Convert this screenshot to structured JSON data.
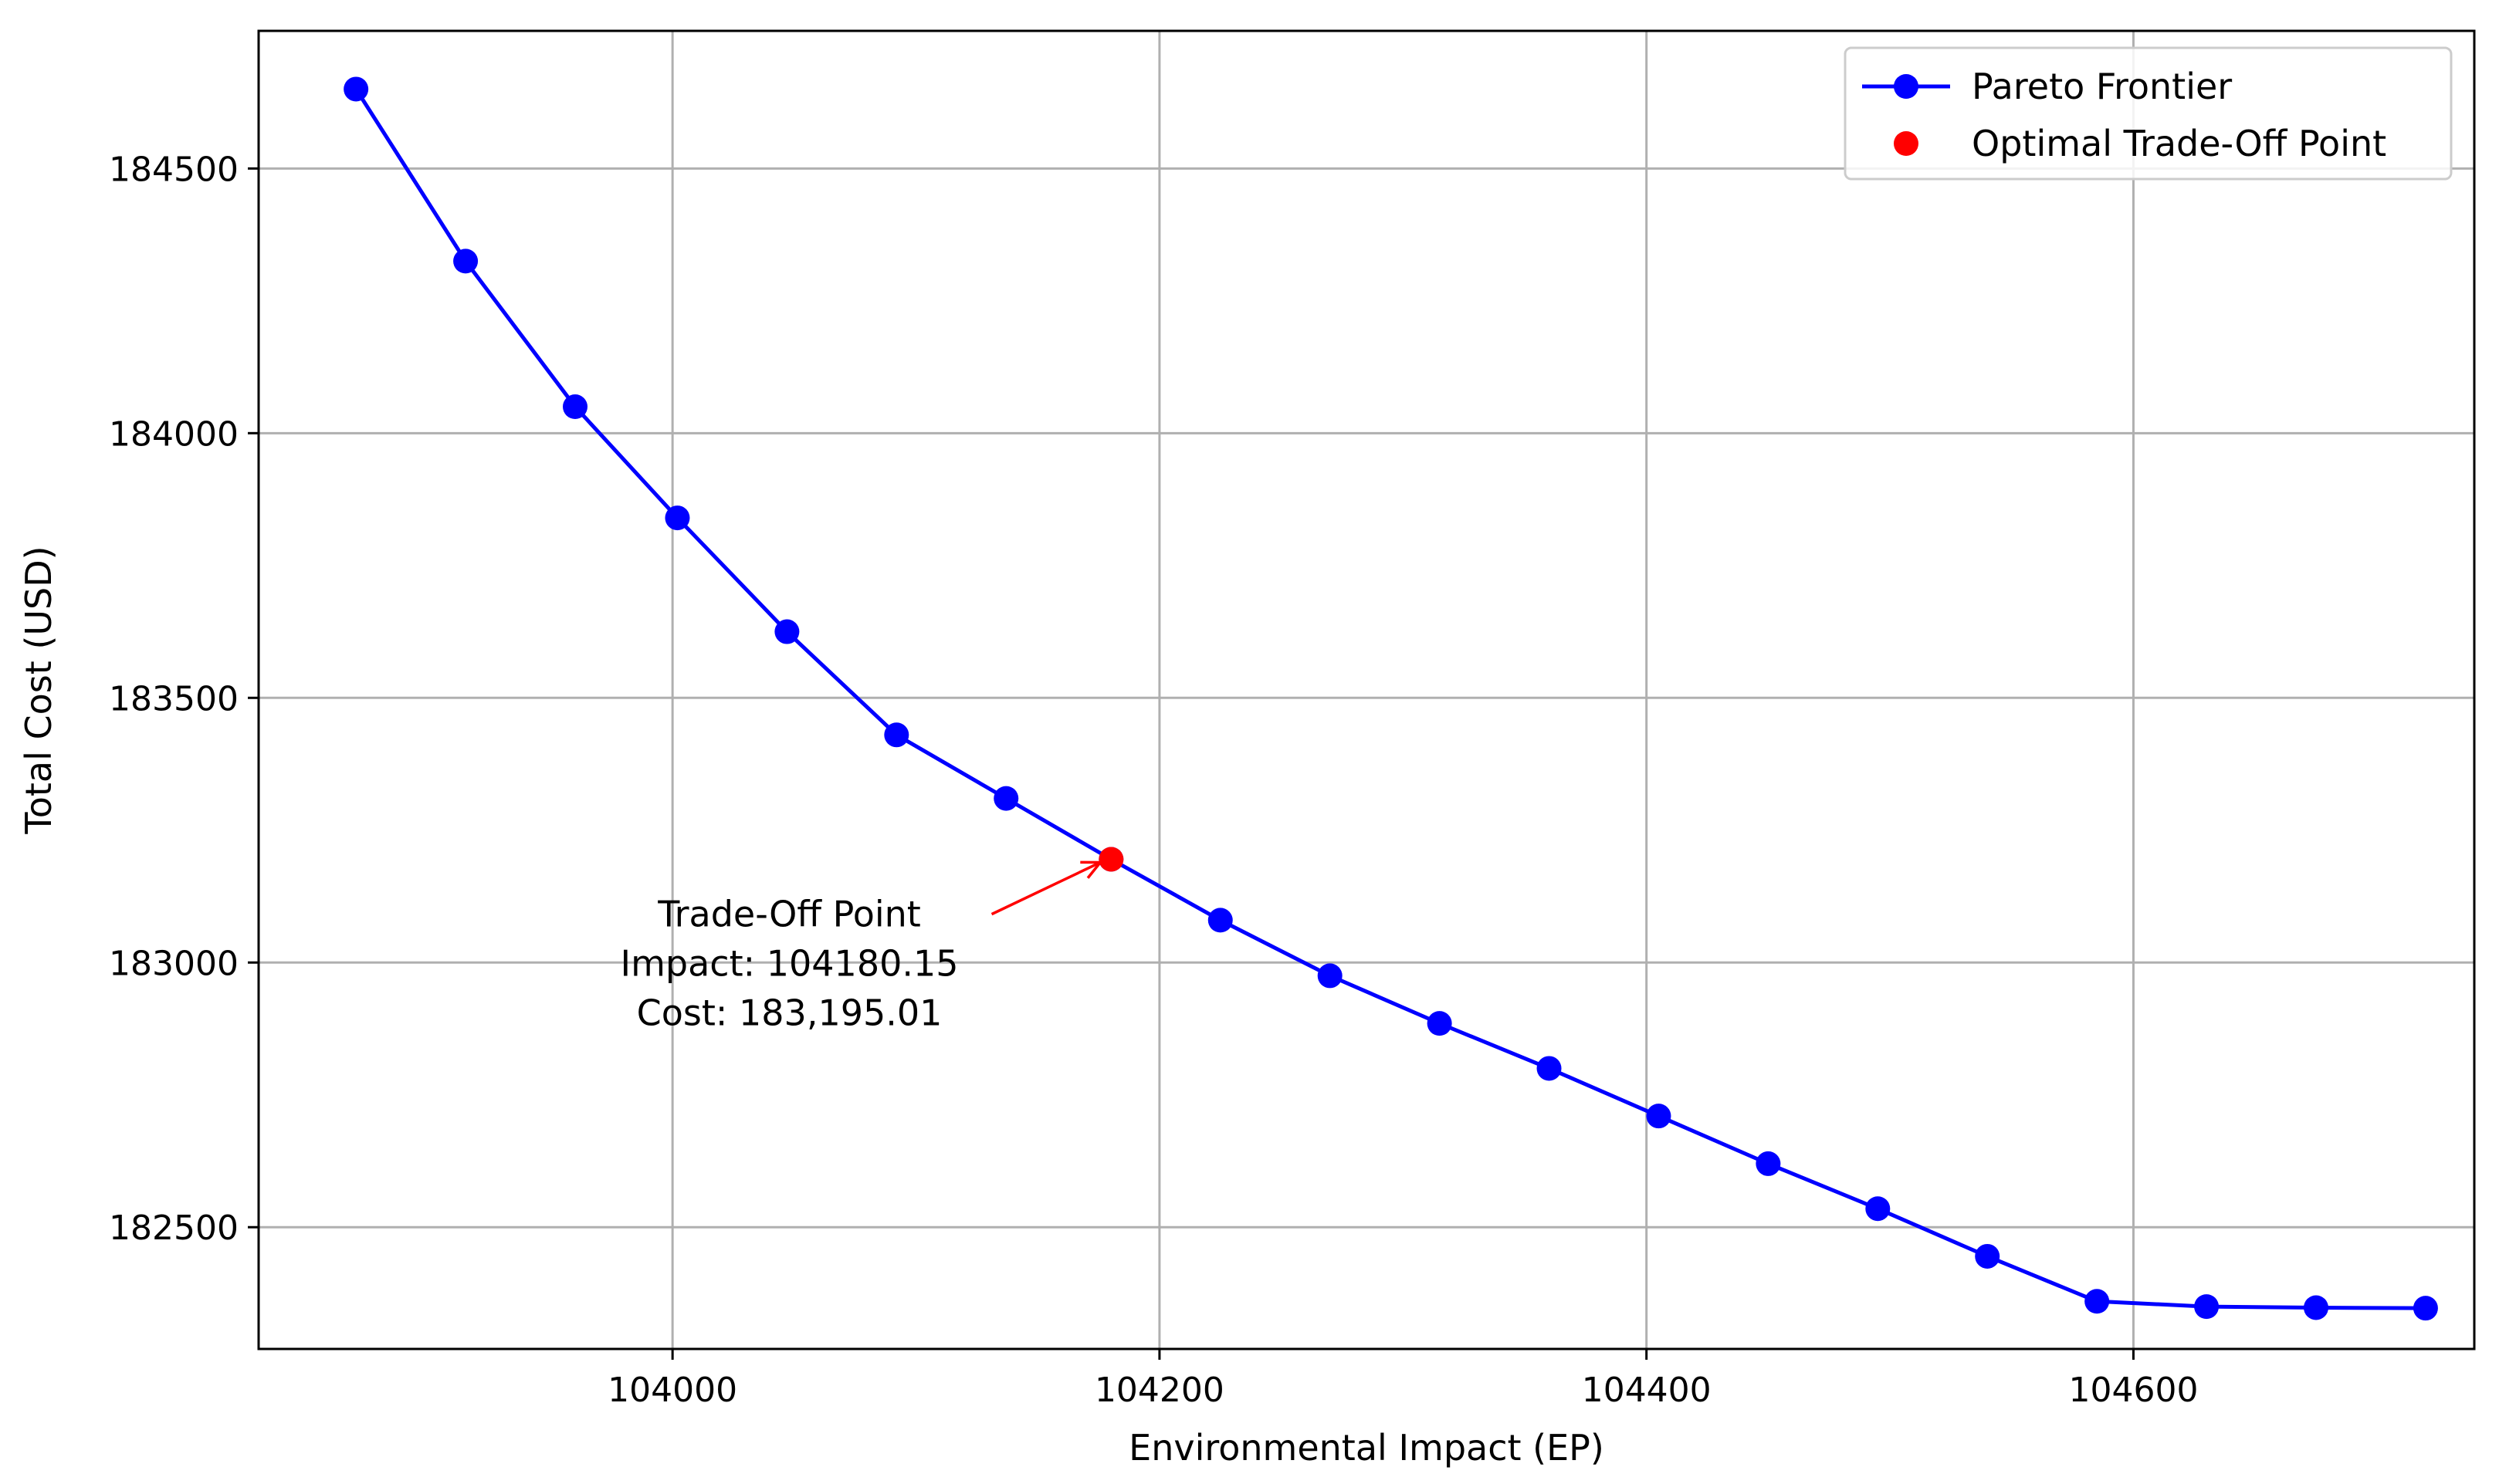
{
  "chart_data": {
    "type": "line",
    "title": "",
    "xlabel": "Environmental Impact (EP)",
    "ylabel": "Total Cost (USD)",
    "xlim": [
      103830,
      104740
    ],
    "ylim": [
      182270,
      184760
    ],
    "xticks": [
      104000,
      104200,
      104400,
      104600
    ],
    "yticks": [
      182500,
      183000,
      183500,
      184000,
      184500
    ],
    "grid": true,
    "legend_position": "upper right",
    "series": [
      {
        "name": "Pareto Frontier",
        "color": "#0000ff",
        "marker": "circle",
        "points": [
          {
            "x": 103870,
            "y": 184650
          },
          {
            "x": 103915,
            "y": 184325
          },
          {
            "x": 103960,
            "y": 184050
          },
          {
            "x": 104002,
            "y": 183840
          },
          {
            "x": 104047,
            "y": 183625
          },
          {
            "x": 104092,
            "y": 183430
          },
          {
            "x": 104137,
            "y": 183310
          },
          {
            "x": 104180.15,
            "y": 183195.01
          },
          {
            "x": 104225,
            "y": 183080
          },
          {
            "x": 104270,
            "y": 182975
          },
          {
            "x": 104315,
            "y": 182885
          },
          {
            "x": 104360,
            "y": 182800
          },
          {
            "x": 104405,
            "y": 182710
          },
          {
            "x": 104450,
            "y": 182620
          },
          {
            "x": 104495,
            "y": 182535
          },
          {
            "x": 104540,
            "y": 182445
          },
          {
            "x": 104585,
            "y": 182360
          },
          {
            "x": 104630,
            "y": 182350
          },
          {
            "x": 104675,
            "y": 182348
          },
          {
            "x": 104720,
            "y": 182347
          }
        ]
      }
    ],
    "highlight": {
      "name": "Optimal Trade-Off Point",
      "color": "#ff0000",
      "x": 104180.15,
      "y": 183195.01
    },
    "annotation": {
      "lines": [
        "Trade-Off Point",
        "Impact: 104180.15",
        "Cost: 183,195.01"
      ],
      "arrow_color": "#ff0000",
      "text_anchor_x": 104048,
      "text_anchor_y": 183068
    }
  }
}
